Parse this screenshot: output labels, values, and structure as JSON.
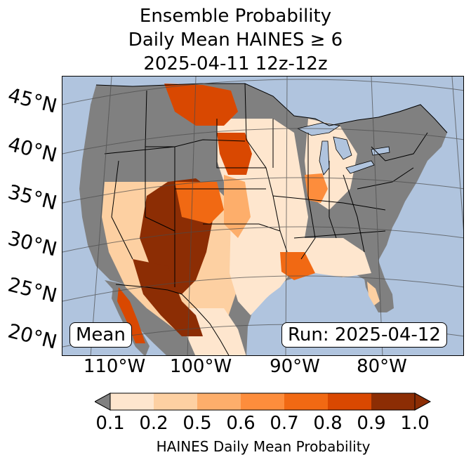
{
  "title": {
    "line1": "Ensemble Probability",
    "line2": "Daily Mean HAINES ≥ 6",
    "line3": "2025-04-11 12z-12z"
  },
  "map": {
    "lat_labels": [
      "45°N",
      "40°N",
      "35°N",
      "30°N",
      "25°N",
      "20°N"
    ],
    "lon_labels": [
      "110°W",
      "100°W",
      "90°W",
      "80°W"
    ],
    "stat_label": "Mean",
    "run_label": "Run: 2025-04-12"
  },
  "colors": {
    "ocean": "#b0c4de",
    "land_no_data": "#808080",
    "under": "#808080",
    "bins": [
      "#fff5eb",
      "#fee6ce",
      "#fdd0a2",
      "#fdae6b",
      "#fd8d3c",
      "#f16913",
      "#d94801",
      "#8c2d04"
    ]
  },
  "colorbar": {
    "ticks": [
      "0.1",
      "0.2",
      "0.5",
      "0.6",
      "0.7",
      "0.8",
      "0.9",
      "1.0"
    ],
    "label": "HAINES Daily Mean Probability"
  }
}
